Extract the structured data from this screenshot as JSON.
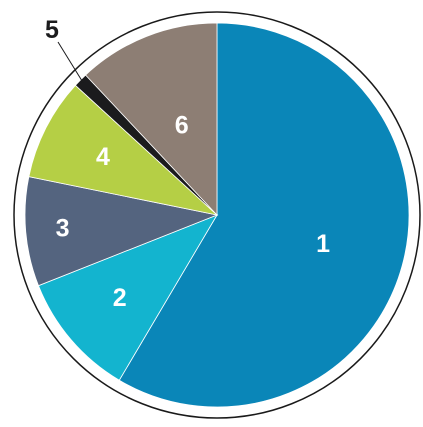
{
  "chart_data": {
    "type": "pie",
    "title": "",
    "slices": [
      {
        "label": "1",
        "value": 58.5,
        "color": "#0a86b8",
        "label_color": "#ffffff"
      },
      {
        "label": "2",
        "value": 10.5,
        "color": "#13b4cf",
        "label_color": "#ffffff"
      },
      {
        "label": "3",
        "value": 9.2,
        "color": "#54647f",
        "label_color": "#ffffff"
      },
      {
        "label": "4",
        "value": 8.6,
        "color": "#b5cf45",
        "label_color": "#ffffff"
      },
      {
        "label": "5",
        "value": 1.2,
        "color": "#1b1b1d",
        "label_color": "#1b1b1d"
      },
      {
        "label": "6",
        "value": 12.0,
        "color": "#8d7e74",
        "label_color": "#ffffff"
      }
    ],
    "start_angle": "12 o'clock",
    "direction": "clockwise",
    "outline_color": "#1a1a1a",
    "legend": "none"
  }
}
